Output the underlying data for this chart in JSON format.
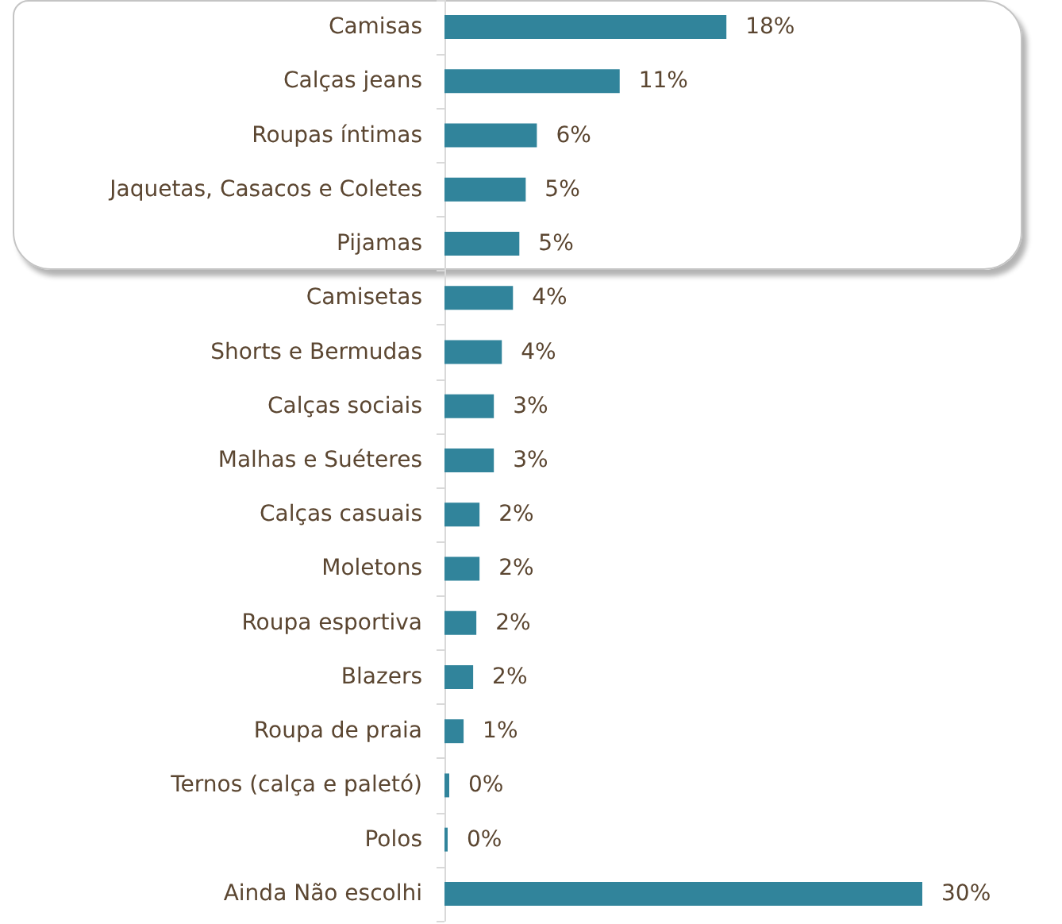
{
  "chart_data": {
    "type": "bar",
    "orientation": "horizontal",
    "categories": [
      "Camisas",
      "Calças jeans",
      "Roupas íntimas",
      "Jaquetas, Casacos e Coletes",
      "Pijamas",
      "Camisetas",
      "Shorts e Bermudas",
      "Calças sociais",
      "Malhas e Suéteres",
      "Calças casuais",
      "Moletons",
      "Roupa esportiva",
      "Blazers",
      "Roupa de praia",
      "Ternos (calça e paletó)",
      "Polos",
      "Ainda Não escolhi"
    ],
    "values": [
      17.7,
      11.0,
      5.8,
      5.1,
      4.7,
      4.3,
      3.6,
      3.1,
      3.1,
      2.2,
      2.2,
      2.0,
      1.8,
      1.2,
      0.3,
      0.2,
      30.0
    ],
    "value_labels": [
      "18%",
      "11%",
      "6%",
      "5%",
      "5%",
      "4%",
      "4%",
      "3%",
      "3%",
      "2%",
      "2%",
      "2%",
      "2%",
      "1%",
      "0%",
      "0%",
      "30%"
    ],
    "color": "#31849b",
    "tick_labels": "y"
  }
}
